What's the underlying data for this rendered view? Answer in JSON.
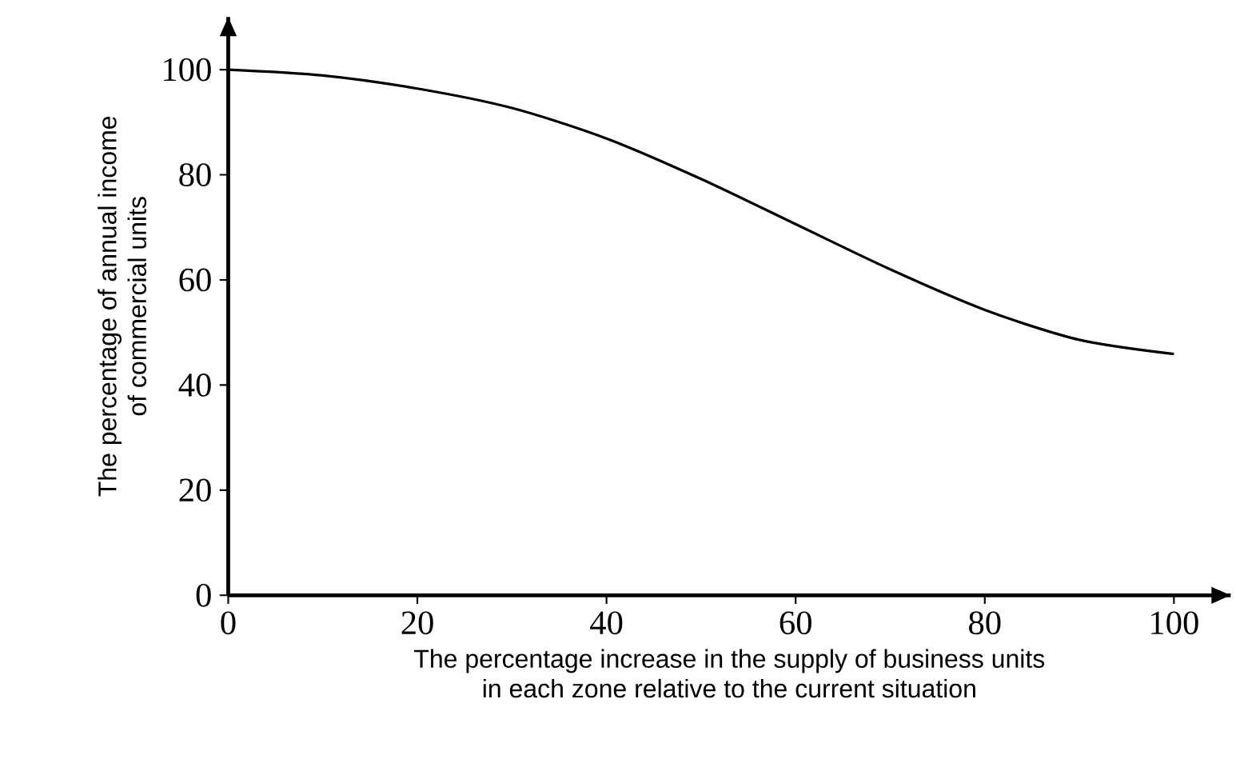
{
  "chart_data": {
    "type": "line",
    "xlabel": "The percentage increase in the supply of business units\nin each zone relative to the current situation",
    "ylabel": "The percentage of annual income\nof commercial units",
    "x": [
      0,
      10,
      20,
      30,
      40,
      50,
      60,
      70,
      80,
      90,
      100
    ],
    "series": [
      {
        "color": "#000000",
        "values": [
          100,
          98.9,
          96.4,
          92.7,
          86.9,
          79.2,
          70.6,
          62,
          54.3,
          48.6,
          45.9
        ]
      }
    ],
    "xlim": [
      0,
      106
    ],
    "ylim": [
      0,
      110
    ],
    "xticks": [
      0,
      20,
      40,
      60,
      80,
      100
    ],
    "yticks": [
      0,
      20,
      40,
      60,
      80,
      100
    ],
    "grid": false,
    "marker": "none",
    "line_style": "solid"
  }
}
